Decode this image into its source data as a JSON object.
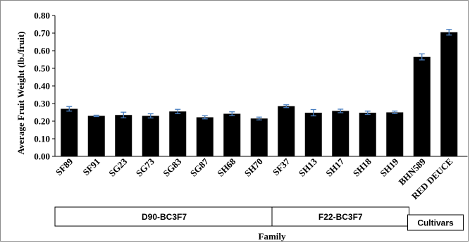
{
  "chart_data": {
    "type": "bar",
    "ylabel": "Average Fruit Weight (lb./fruit)",
    "xlabel": "Family",
    "ylim": [
      0,
      0.8
    ],
    "yticks": [
      "0.00",
      "0.10",
      "0.20",
      "0.30",
      "0.40",
      "0.50",
      "0.60",
      "0.70",
      "0.80"
    ],
    "categories": [
      "SF89",
      "SF91",
      "SG23",
      "SG73",
      "SG83",
      "SG87",
      "SH68",
      "SH70",
      "SF37",
      "SH13",
      "SH17",
      "SH18",
      "SH19",
      "BHN589",
      "RED DEUCE"
    ],
    "values": [
      0.27,
      0.23,
      0.235,
      0.23,
      0.255,
      0.222,
      0.242,
      0.215,
      0.285,
      0.248,
      0.258,
      0.248,
      0.25,
      0.565,
      0.705
    ],
    "errors": [
      0.013,
      0.004,
      0.016,
      0.012,
      0.012,
      0.009,
      0.011,
      0.008,
      0.008,
      0.018,
      0.01,
      0.009,
      0.007,
      0.017,
      0.016
    ],
    "groups": [
      {
        "label": "D90-BC3F7",
        "categories": [
          "SF89",
          "SF91",
          "SG23",
          "SG73",
          "SG83",
          "SG87",
          "SH68",
          "SH70"
        ]
      },
      {
        "label": "F22-BC3F7",
        "categories": [
          "SF37",
          "SH13",
          "SH17",
          "SH18",
          "SH19"
        ]
      },
      {
        "label": "Cultivars",
        "categories": [
          "BHN589",
          "RED DEUCE"
        ]
      }
    ],
    "colors": {
      "bar": "#000000",
      "error_bar": "#4a7fc1"
    },
    "grid": false
  }
}
